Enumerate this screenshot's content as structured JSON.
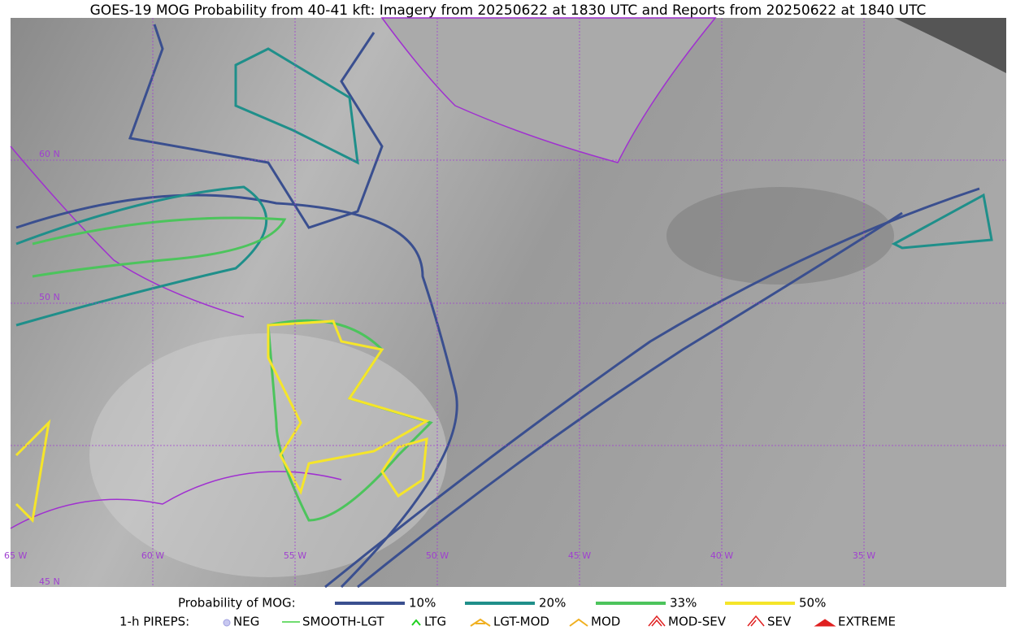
{
  "title": "GOES-19 MOG Probability from 40-41 kft: Imagery from 20250622 at 1830 UTC and Reports from 20250622 at 1840 UTC",
  "map": {
    "lat_labels": [
      "60 N",
      "50 N",
      "45 N"
    ],
    "lon_labels": [
      "65 W",
      "60 W",
      "55 W",
      "50 W",
      "45 W",
      "40 W",
      "35 W"
    ]
  },
  "legend": {
    "mog": {
      "label": "Probability of MOG:",
      "items": [
        {
          "label": "10%",
          "color": "#3a4f8f"
        },
        {
          "label": "20%",
          "color": "#1f8f8a"
        },
        {
          "label": "33%",
          "color": "#4cc45c"
        },
        {
          "label": "50%",
          "color": "#f5e52a"
        }
      ]
    },
    "pireps": {
      "label": "1-h PIREPS:",
      "items": [
        "NEG",
        "SMOOTH-LGT",
        "LTG",
        "LGT-MOD",
        "MOD",
        "MOD-SEV",
        "SEV",
        "EXTREME"
      ]
    }
  }
}
